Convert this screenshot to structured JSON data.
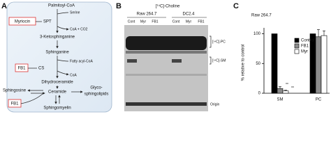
{
  "panel_a": {
    "label": "A",
    "palmitoyl_coa": "Palmitoyl-CoA",
    "serine": "Serine",
    "spt": "SPT",
    "myriocin": "Myriocin",
    "coa_co2": "CoA + CO2",
    "ketosphinganine": "3-Ketosphinganine",
    "sphinganine": "Sphinganine",
    "fatty_acyl_coa": "Fatty acyl-CoA",
    "fb1_top": "FB1",
    "cs": "CS",
    "coa": "CoA",
    "dihydroceramide": "Dihydroceramide",
    "sphingosine": "Sphingosine",
    "ceramide": "Ceramide",
    "glyco_1": "Glyco-",
    "glyco_2": "sphingolipids",
    "fb1_bottom": "FB1",
    "sphingomyelin": "Sphingomyelin"
  },
  "panel_b": {
    "label": "B",
    "title": "[¹⁴C]-Choline",
    "groups": [
      "Raw 264.7",
      "DC2.4"
    ],
    "lanes": [
      "Cont",
      "Myr",
      "FB1",
      "Cont",
      "Myr",
      "FB1"
    ],
    "band_labels": [
      "[¹⁴C]-PC",
      "[¹⁴C]-SM",
      "Origin"
    ]
  },
  "chart_data": {
    "type": "bar",
    "panel_label": "C",
    "title": "Raw 264.7",
    "y_label": "% relative to control",
    "categories": [
      "SM",
      "PC"
    ],
    "series": [
      {
        "name": "Control",
        "color": "#000000",
        "values": [
          100,
          100
        ]
      },
      {
        "name": "FB1",
        "color": "#8c8c8c",
        "values": [
          8,
          95
        ],
        "errors": [
          3,
          12
        ]
      },
      {
        "name": "Myr",
        "color": "#ffffff",
        "values": [
          4,
          97
        ],
        "errors": [
          1,
          8
        ]
      }
    ],
    "annotations": [
      "**",
      "**"
    ],
    "ylim": [
      0,
      110
    ],
    "yticks": [
      0,
      50,
      100
    ],
    "legend": "upper right"
  }
}
